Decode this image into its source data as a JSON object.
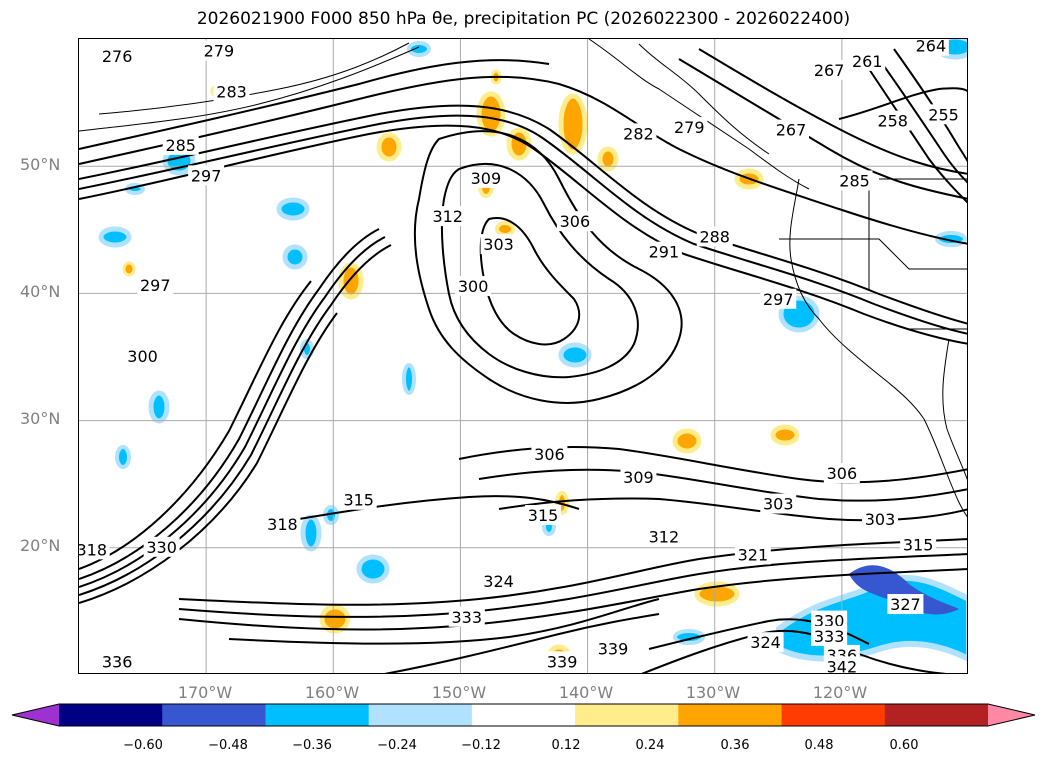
{
  "title": "2026021900 F000 850 hPa θe, precipitation PC (2026022300 - 2026022400)",
  "map": {
    "lon_range": [
      -180,
      -110
    ],
    "lat_range": [
      10,
      60
    ],
    "gridlines": true,
    "lat_labels": [
      "50°N",
      "40°N",
      "30°N",
      "20°N"
    ],
    "lat_values": [
      50,
      40,
      30,
      20
    ],
    "lon_labels": [
      "170°W",
      "160°W",
      "150°W",
      "140°W",
      "130°W",
      "120°W"
    ],
    "lon_values": [
      -170,
      -160,
      -150,
      -140,
      -130,
      -120
    ]
  },
  "contour_labels": [
    {
      "text": "276",
      "lon": -177,
      "lat": 58.6
    },
    {
      "text": "279",
      "lon": -169,
      "lat": 59
    },
    {
      "text": "283",
      "lon": -168,
      "lat": 55.8
    },
    {
      "text": "285",
      "lon": -172,
      "lat": 51.6
    },
    {
      "text": "297",
      "lon": -170,
      "lat": 49.2
    },
    {
      "text": "297",
      "lon": -174,
      "lat": 40.6
    },
    {
      "text": "300",
      "lon": -175,
      "lat": 35
    },
    {
      "text": "309",
      "lon": -148,
      "lat": 49
    },
    {
      "text": "312",
      "lon": -151,
      "lat": 46
    },
    {
      "text": "303",
      "lon": -147,
      "lat": 43.8
    },
    {
      "text": "300",
      "lon": -149,
      "lat": 40.5
    },
    {
      "text": "306",
      "lon": -141,
      "lat": 45.6
    },
    {
      "text": "288",
      "lon": -130,
      "lat": 44.4
    },
    {
      "text": "291",
      "lon": -134,
      "lat": 43.2
    },
    {
      "text": "297",
      "lon": -125,
      "lat": 39.5
    },
    {
      "text": "282",
      "lon": -136,
      "lat": 52.5
    },
    {
      "text": "279",
      "lon": -132,
      "lat": 53
    },
    {
      "text": "267",
      "lon": -124,
      "lat": 52.8
    },
    {
      "text": "267",
      "lon": -121,
      "lat": 57.5
    },
    {
      "text": "261",
      "lon": -118,
      "lat": 58.2
    },
    {
      "text": "264",
      "lon": -113,
      "lat": 59.4
    },
    {
      "text": "258",
      "lon": -116,
      "lat": 53.5
    },
    {
      "text": "255",
      "lon": -112,
      "lat": 54
    },
    {
      "text": "285",
      "lon": -119,
      "lat": 48.8
    },
    {
      "text": "306",
      "lon": -143,
      "lat": 27.3
    },
    {
      "text": "309",
      "lon": -136,
      "lat": 25.5
    },
    {
      "text": "306",
      "lon": -120,
      "lat": 25.8
    },
    {
      "text": "303",
      "lon": -125,
      "lat": 23.4
    },
    {
      "text": "303",
      "lon": -117,
      "lat": 22.2
    },
    {
      "text": "315",
      "lon": -158,
      "lat": 23.7
    },
    {
      "text": "315",
      "lon": -143.5,
      "lat": 22.5
    },
    {
      "text": "312",
      "lon": -134,
      "lat": 20.8
    },
    {
      "text": "321",
      "lon": -127,
      "lat": 19.4
    },
    {
      "text": "315",
      "lon": -114,
      "lat": 20.2
    },
    {
      "text": "324",
      "lon": -147,
      "lat": 17.3
    },
    {
      "text": "333",
      "lon": -149.5,
      "lat": 14.5
    },
    {
      "text": "339",
      "lon": -138,
      "lat": 12
    },
    {
      "text": "339",
      "lon": -142,
      "lat": 11
    },
    {
      "text": "324",
      "lon": -126,
      "lat": 12.5
    },
    {
      "text": "330",
      "lon": -121,
      "lat": 14.2
    },
    {
      "text": "333",
      "lon": -121,
      "lat": 13
    },
    {
      "text": "336",
      "lon": -120,
      "lat": 11.5
    },
    {
      "text": "342",
      "lon": -120,
      "lat": 10.6
    },
    {
      "text": "318",
      "lon": -164,
      "lat": 21.8
    },
    {
      "text": "318",
      "lon": -179,
      "lat": 19.8
    },
    {
      "text": "336",
      "lon": -177,
      "lat": 11
    },
    {
      "text": "330",
      "lon": -173.5,
      "lat": 20
    },
    {
      "text": "327",
      "lon": -115,
      "lat": 15.5
    }
  ],
  "colorbar": {
    "colors": [
      "#9d32d0",
      "#000085",
      "#3657cf",
      "#00bfff",
      "#b0e2ff",
      "#ffffff",
      "#ffec8b",
      "#ffa500",
      "#ff3d00",
      "#b22222",
      "#ff88a5"
    ],
    "tick_labels": [
      "−0.60",
      "−0.48",
      "−0.36",
      "−0.24",
      "−0.12",
      "0.12",
      "0.24",
      "0.36",
      "0.48",
      "0.60"
    ]
  }
}
